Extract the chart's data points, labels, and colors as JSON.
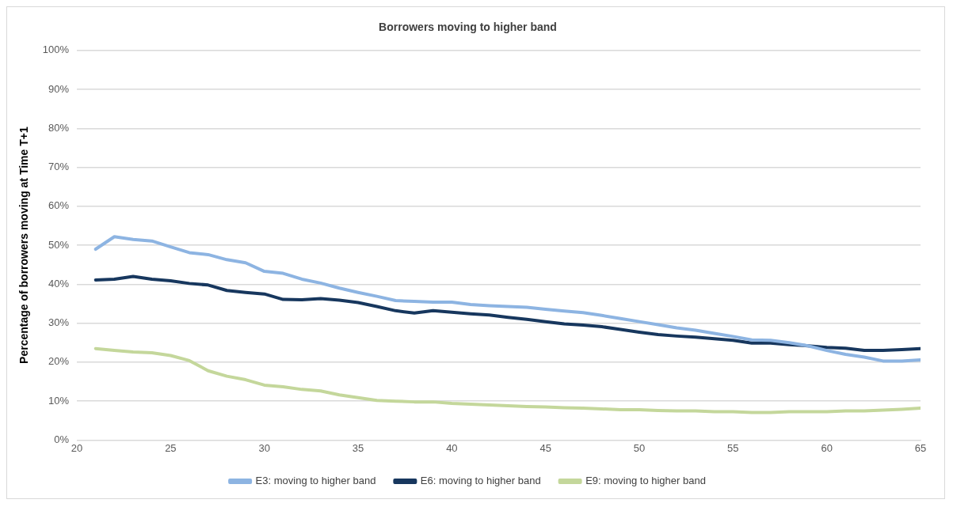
{
  "chart_data": {
    "type": "line",
    "title": "Borrowers moving to higher band",
    "ylabel": "Percentage of borrowers moving at Time T+1",
    "x": [
      21,
      22,
      23,
      24,
      25,
      26,
      27,
      28,
      29,
      30,
      31,
      32,
      33,
      34,
      35,
      36,
      37,
      38,
      39,
      40,
      41,
      42,
      43,
      44,
      45,
      46,
      47,
      48,
      49,
      50,
      51,
      52,
      53,
      54,
      55,
      56,
      57,
      58,
      59,
      60,
      61,
      62,
      63,
      64,
      65
    ],
    "series": [
      {
        "name": "E3: moving to higher band",
        "color": "#8db4e2",
        "values": [
          49,
          52.2,
          51.5,
          51.1,
          49.6,
          48.1,
          47.6,
          46.3,
          45.5,
          43.3,
          42.8,
          41.3,
          40.3,
          39,
          37.9,
          36.9,
          35.8,
          35.6,
          35.4,
          35.4,
          34.8,
          34.5,
          34.3,
          34.1,
          33.6,
          33.1,
          32.7,
          32,
          31.2,
          30.4,
          29.6,
          28.8,
          28.2,
          27.4,
          26.6,
          25.7,
          25.6,
          25,
          24.2,
          23,
          22,
          21.3,
          20.3,
          20.3,
          20.6
        ]
      },
      {
        "name": "E6: moving to higher band",
        "color": "#17375e",
        "values": [
          41.1,
          41.3,
          42,
          41.3,
          40.9,
          40.2,
          39.8,
          38.4,
          37.9,
          37.5,
          36.1,
          36,
          36.3,
          35.9,
          35.3,
          34.3,
          33.2,
          32.6,
          33.2,
          32.8,
          32.4,
          32.1,
          31.5,
          31,
          30.4,
          29.8,
          29.5,
          29.1,
          28.4,
          27.7,
          27.1,
          26.7,
          26.4,
          26,
          25.6,
          24.9,
          24.9,
          24.5,
          24.2,
          23.8,
          23.6,
          23,
          23,
          23.2,
          23.5
        ]
      },
      {
        "name": "E9: moving to higher band",
        "color": "#c4d79b",
        "values": [
          23.5,
          23,
          22.6,
          22.4,
          21.7,
          20.4,
          17.8,
          16.4,
          15.5,
          14.1,
          13.7,
          13,
          12.6,
          11.6,
          10.9,
          10.2,
          10,
          9.8,
          9.8,
          9.4,
          9.2,
          9,
          8.8,
          8.6,
          8.5,
          8.3,
          8.2,
          8,
          7.8,
          7.8,
          7.6,
          7.5,
          7.5,
          7.3,
          7.3,
          7.1,
          7.1,
          7.3,
          7.3,
          7.3,
          7.5,
          7.5,
          7.7,
          7.9,
          8.2
        ]
      }
    ],
    "xlim": [
      20,
      65
    ],
    "xticks": [
      20,
      25,
      30,
      35,
      40,
      45,
      50,
      55,
      60,
      65
    ],
    "ylim": [
      0,
      100
    ],
    "yticks": [
      {
        "value": 0,
        "label": "0%"
      },
      {
        "value": 10,
        "label": "10%"
      },
      {
        "value": 20,
        "label": "20%"
      },
      {
        "value": 30,
        "label": "30%"
      },
      {
        "value": 40,
        "label": "40%"
      },
      {
        "value": 50,
        "label": "50%"
      },
      {
        "value": 60,
        "label": "60%"
      },
      {
        "value": 70,
        "label": "70%"
      },
      {
        "value": 80,
        "label": "80%"
      },
      {
        "value": 90,
        "label": "90%"
      },
      {
        "value": 100,
        "label": "100%"
      }
    ],
    "grid": "y",
    "legend": "bottom",
    "marker": "none",
    "line_style": "solid"
  }
}
